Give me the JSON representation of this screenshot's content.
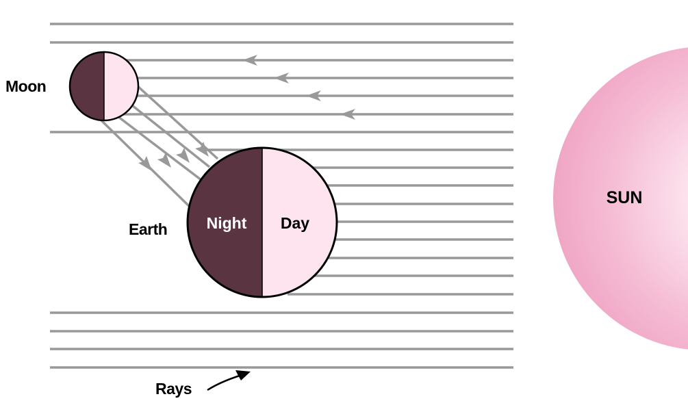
{
  "labels": {
    "moon": "Moon",
    "earth": "Earth",
    "night": "Night",
    "day": "Day",
    "sun": "SUN",
    "rays": "Rays"
  },
  "colors": {
    "ray": "#999999",
    "night": "#5a3440",
    "day": "#fde4ef",
    "sun_edge": "#f1a7c6",
    "sun_center": "#ffffff",
    "outline": "#000000"
  }
}
